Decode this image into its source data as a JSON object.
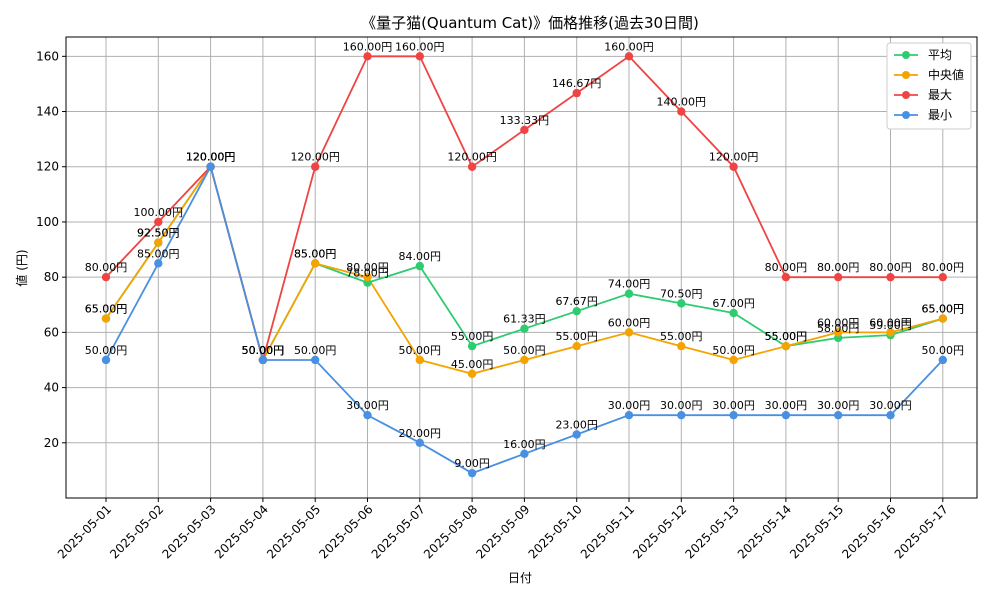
{
  "chart_data": {
    "type": "line",
    "title": "《量子猫(Quantum Cat)》価格推移(過去30日間)",
    "xlabel": "日付",
    "ylabel": "値 (円)",
    "x": [
      "2025-05-01",
      "2025-05-02",
      "2025-05-03",
      "2025-05-04",
      "2025-05-05",
      "2025-05-06",
      "2025-05-07",
      "2025-05-08",
      "2025-05-09",
      "2025-05-10",
      "2025-05-11",
      "2025-05-12",
      "2025-05-13",
      "2025-05-14",
      "2025-05-15",
      "2025-05-16",
      "2025-05-17"
    ],
    "ylim": [
      0,
      167
    ],
    "yticks": [
      20,
      40,
      60,
      80,
      100,
      120,
      140,
      160
    ],
    "label_suffix": "円",
    "grid": true,
    "legend_position": "top-right",
    "series": [
      {
        "name": "平均",
        "color": "#2ecc71",
        "values": [
          65.0,
          92.5,
          120.0,
          50.0,
          85.0,
          78.0,
          84.0,
          55.0,
          61.33,
          67.67,
          74.0,
          70.5,
          67.0,
          55.0,
          58.0,
          59.0,
          65.0
        ]
      },
      {
        "name": "中央値",
        "color": "#f5a300",
        "values": [
          65.0,
          92.5,
          120.0,
          50.0,
          85.0,
          80.0,
          50.0,
          45.0,
          50.0,
          55.0,
          60.0,
          55.0,
          50.0,
          55.0,
          60.0,
          60.0,
          65.0
        ]
      },
      {
        "name": "最大",
        "color": "#ef4444",
        "values": [
          80.0,
          100.0,
          120.0,
          50.0,
          120.0,
          160.0,
          160.0,
          120.0,
          133.33,
          146.67,
          160.0,
          140.0,
          120.0,
          80.0,
          80.0,
          80.0,
          80.0
        ]
      },
      {
        "name": "最小",
        "color": "#4a90e2",
        "values": [
          50.0,
          85.0,
          120.0,
          50.0,
          50.0,
          30.0,
          20.0,
          9.0,
          16.0,
          23.0,
          30.0,
          30.0,
          30.0,
          30.0,
          30.0,
          30.0,
          50.0
        ]
      }
    ]
  }
}
